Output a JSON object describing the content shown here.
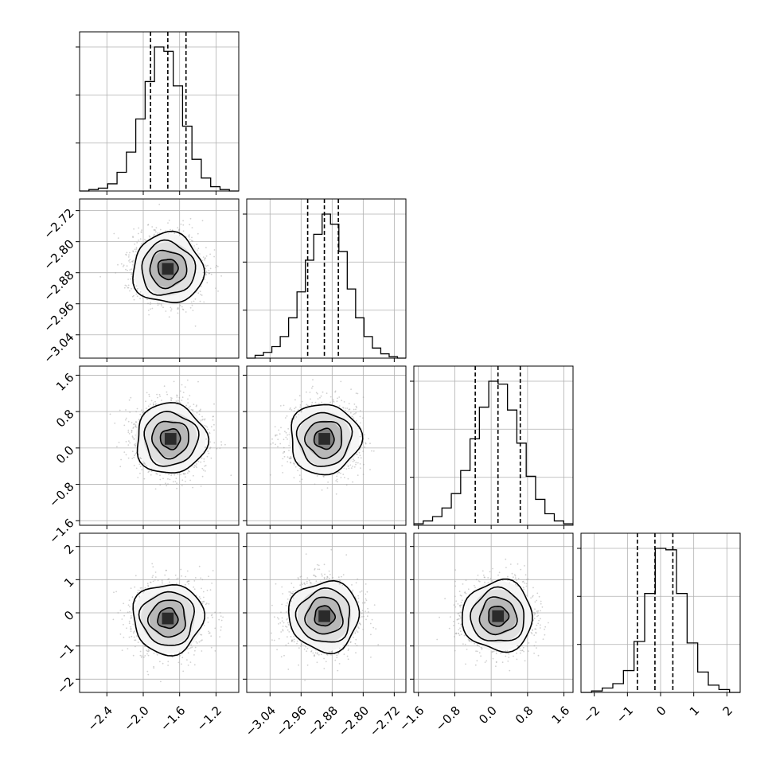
{
  "chart_data": {
    "type": "corner",
    "n_params": 4,
    "parameters": [
      {
        "index": 0,
        "median": -1.73,
        "q16": -1.92,
        "q84": -1.53,
        "range": [
          -2.7,
          -0.95
        ],
        "ticks": [
          -2.4,
          -2.0,
          -1.6,
          -1.2
        ],
        "tick_labels": [
          "−2.4",
          "−2.0",
          "−1.6",
          "−1.2"
        ]
      },
      {
        "index": 1,
        "median": -2.9,
        "q16": -2.943,
        "q84": -2.864,
        "range": [
          -3.1,
          -2.69
        ],
        "ticks": [
          -3.04,
          -2.96,
          -2.88,
          -2.8,
          -2.72
        ],
        "tick_labels": [
          "−3.04",
          "−2.96",
          "−2.88",
          "−2.80",
          "−2.72"
        ]
      },
      {
        "index": 2,
        "median": 0.15,
        "q16": -0.35,
        "q84": 0.64,
        "range": [
          -1.7,
          1.8
        ],
        "ticks": [
          -1.6,
          -0.8,
          0.0,
          0.8,
          1.6
        ],
        "tick_labels": [
          "−1.6",
          "−0.8",
          "0.0",
          "0.8",
          "1.6"
        ]
      },
      {
        "index": 3,
        "median": -0.17,
        "q16": -0.7,
        "q84": 0.37,
        "range": [
          -2.4,
          2.4
        ],
        "ticks": [
          -2,
          -1,
          0,
          1,
          2
        ],
        "tick_labels": [
          "−2",
          "−1",
          "0",
          "1",
          "2"
        ]
      }
    ],
    "histograms": [
      {
        "param": 0,
        "bins": [
          -2.7,
          -0.95
        ],
        "counts": [
          0,
          1,
          2,
          5,
          13,
          27,
          50,
          76,
          100,
          97,
          73,
          45,
          22,
          9,
          3,
          1,
          0
        ]
      },
      {
        "param": 1,
        "bins": [
          -3.1,
          -2.69
        ],
        "counts": [
          0,
          2,
          4,
          8,
          15,
          28,
          46,
          68,
          86,
          100,
          93,
          74,
          48,
          28,
          15,
          7,
          3,
          1,
          0
        ]
      },
      {
        "param": 2,
        "bins": [
          -1.7,
          1.8
        ],
        "counts": [
          1,
          3,
          6,
          12,
          22,
          38,
          60,
          82,
          100,
          98,
          80,
          57,
          34,
          18,
          8,
          3,
          1
        ]
      },
      {
        "param": 3,
        "bins": [
          -2.4,
          2.4
        ],
        "counts": [
          0,
          1,
          3,
          6,
          15,
          35,
          68,
          99,
          98,
          68,
          34,
          14,
          5,
          2,
          0
        ]
      }
    ],
    "pairs": [
      {
        "x_param": 0,
        "y_param": 1,
        "density_max": [
          -1.73,
          -2.87
        ]
      },
      {
        "x_param": 0,
        "y_param": 2,
        "density_max": [
          -1.7,
          0.2
        ]
      },
      {
        "x_param": 1,
        "y_param": 2,
        "density_max": [
          -2.9,
          0.2
        ]
      },
      {
        "x_param": 0,
        "y_param": 3,
        "density_max": [
          -1.73,
          -0.17
        ]
      },
      {
        "x_param": 1,
        "y_param": 3,
        "density_max": [
          -2.9,
          -0.1
        ]
      },
      {
        "x_param": 2,
        "y_param": 3,
        "density_max": [
          0.15,
          -0.1
        ]
      }
    ],
    "contour_levels": [
      0.5,
      1.0,
      1.5,
      2.0
    ],
    "grid": true,
    "colors": {
      "line": "#000000",
      "grid": "#b0b0b0",
      "scatter": "#9a9a9a"
    }
  }
}
